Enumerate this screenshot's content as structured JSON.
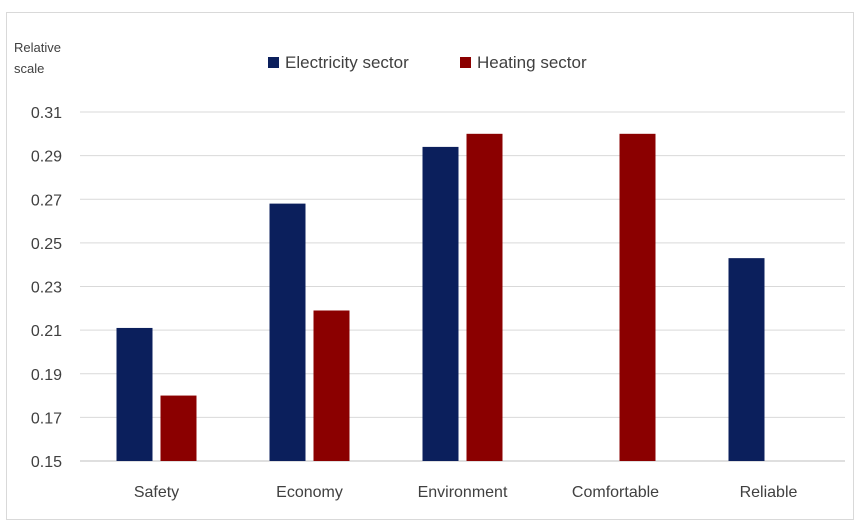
{
  "chart_data": {
    "type": "bar",
    "title": "",
    "ylabel": "Relative scale",
    "xlabel": "",
    "categories": [
      "Safety",
      "Economy",
      "Environment",
      "Comfortable",
      "Reliable"
    ],
    "series": [
      {
        "name": "Electricity sector",
        "color": "#0b1f5c",
        "values": [
          0.211,
          0.268,
          0.294,
          null,
          0.243
        ]
      },
      {
        "name": "Heating sector",
        "color": "#8b0000",
        "values": [
          0.18,
          0.219,
          0.3,
          0.3,
          null
        ]
      }
    ],
    "ylim": [
      0.15,
      0.31
    ],
    "yticks": [
      "0.15",
      "0.17",
      "0.19",
      "0.21",
      "0.23",
      "0.25",
      "0.27",
      "0.29",
      "0.31"
    ],
    "grid": true,
    "legend_position": "top-center"
  }
}
